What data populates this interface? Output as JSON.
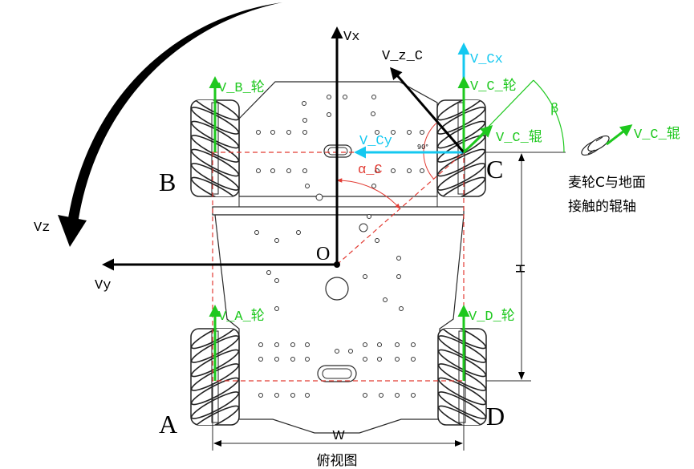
{
  "axes": {
    "vx": "Vx",
    "vy": "Vy",
    "vz": "Vz",
    "origin": "O"
  },
  "wheels": {
    "a": "A",
    "b": "B",
    "c": "C",
    "d": "D"
  },
  "vectors": {
    "v_a_wheel": "V_A_轮",
    "v_b_wheel": "V_B_轮",
    "v_c_wheel": "V_C_轮",
    "v_d_wheel": "V_D_轮",
    "v_cx": "V_Cx",
    "v_cy": "V_Cy",
    "v_z_c": "V_z_C",
    "v_c_roller": "V_C_辊"
  },
  "angles": {
    "beta": "β",
    "alpha_c": "α_C",
    "right_angle": "90°"
  },
  "dimensions": {
    "h": "H",
    "w": "W"
  },
  "caption": "俯视图",
  "inset": {
    "roller_vector": "V_C_辊",
    "note_line1": "麦轮C与地面",
    "note_line2": "接触的辊轴"
  },
  "colors": {
    "wheel_vector": "#1ec81e",
    "component_vector": "#14c8f0",
    "axis": "#000000",
    "construction": "#e23a32"
  }
}
